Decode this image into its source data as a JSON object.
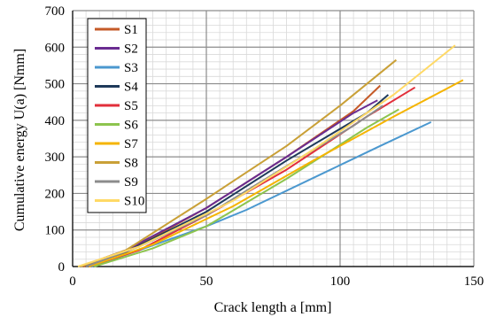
{
  "chart_data": {
    "type": "line",
    "xlabel": "Crack length a [mm]",
    "ylabel": "Cumulative energy U(a) [Nmm]",
    "xlim": [
      0,
      150
    ],
    "ylim": [
      0,
      700
    ],
    "xticks": [
      0,
      50,
      100,
      150
    ],
    "yticks": [
      0,
      100,
      200,
      300,
      400,
      500,
      600,
      700
    ],
    "grid": true,
    "legend_position": "top-left",
    "series": [
      {
        "name": "S1",
        "color": "#C55A28",
        "points": [
          [
            4,
            0
          ],
          [
            20,
            40
          ],
          [
            50,
            160
          ],
          [
            80,
            300
          ],
          [
            105,
            425
          ],
          [
            115,
            495
          ]
        ]
      },
      {
        "name": "S2",
        "color": "#6A2C91",
        "points": [
          [
            3,
            0
          ],
          [
            20,
            45
          ],
          [
            50,
            160
          ],
          [
            80,
            300
          ],
          [
            105,
            420
          ],
          [
            114,
            455
          ]
        ]
      },
      {
        "name": "S3",
        "color": "#4B98CF",
        "points": [
          [
            7,
            0
          ],
          [
            25,
            45
          ],
          [
            50,
            110
          ],
          [
            65,
            155
          ],
          [
            95,
            260
          ],
          [
            115,
            330
          ],
          [
            134,
            395
          ]
        ]
      },
      {
        "name": "S4",
        "color": "#1F3A5A",
        "points": [
          [
            5,
            0
          ],
          [
            20,
            40
          ],
          [
            50,
            150
          ],
          [
            80,
            290
          ],
          [
            110,
            420
          ],
          [
            118,
            470
          ]
        ]
      },
      {
        "name": "S5",
        "color": "#E22F3A",
        "points": [
          [
            6,
            0
          ],
          [
            25,
            45
          ],
          [
            50,
            140
          ],
          [
            80,
            265
          ],
          [
            110,
            410
          ],
          [
            128,
            490
          ]
        ]
      },
      {
        "name": "S6",
        "color": "#8DC44E",
        "points": [
          [
            8,
            0
          ],
          [
            30,
            50
          ],
          [
            50,
            110
          ],
          [
            80,
            240
          ],
          [
            110,
            380
          ],
          [
            122,
            430
          ]
        ]
      },
      {
        "name": "S7",
        "color": "#F5B400",
        "points": [
          [
            6,
            0
          ],
          [
            30,
            60
          ],
          [
            60,
            165
          ],
          [
            90,
            290
          ],
          [
            120,
            410
          ],
          [
            146,
            510
          ]
        ]
      },
      {
        "name": "S8",
        "color": "#C9A037",
        "points": [
          [
            3,
            0
          ],
          [
            20,
            45
          ],
          [
            50,
            185
          ],
          [
            80,
            330
          ],
          [
            100,
            440
          ],
          [
            121,
            565
          ]
        ]
      },
      {
        "name": "S9",
        "color": "#8C8C8C",
        "points": [
          [
            5,
            0
          ],
          [
            25,
            55
          ],
          [
            50,
            140
          ],
          [
            80,
            275
          ],
          [
            105,
            385
          ],
          [
            116,
            440
          ]
        ]
      },
      {
        "name": "S10",
        "color": "#FFD966",
        "points": [
          [
            2,
            0
          ],
          [
            25,
            55
          ],
          [
            60,
            180
          ],
          [
            90,
            320
          ],
          [
            120,
            470
          ],
          [
            143,
            605
          ]
        ]
      }
    ]
  }
}
